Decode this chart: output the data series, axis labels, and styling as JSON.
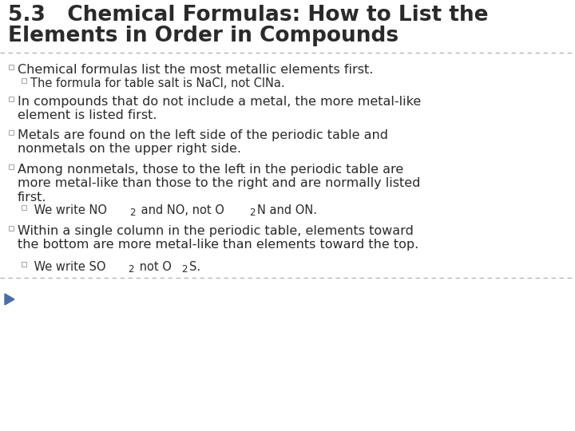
{
  "title_line1": "5.3   Chemical Formulas: How to List the",
  "title_line2": "Elements in Order in Compounds",
  "title_fontsize": 19,
  "title_color": "#3a3a3a",
  "bg_color": "#ffffff",
  "text_color": "#2a2a2a",
  "bullet_color": "#888888",
  "dashed_line_color": "#aaaaaa",
  "body_fontsize": 11.5,
  "sub_fontsize": 10.5,
  "subscript_fontsize": 8.5,
  "bullet1_main": "Chemical formulas list the most metallic elements first.",
  "bullet1_sub": "The formula for table salt is NaCl, not ClNa.",
  "bullet2_main": "In compounds that do not include a metal, the more metal-like\nelement is listed first.",
  "bullet3_main": "Metals are found on the left side of the periodic table and\nnonmetals on the upper right side.",
  "bullet4_main": "Among nonmetals, those to the left in the periodic table are\nmore metal-like than those to the right and are normally listed\nfirst.",
  "bullet5_main": "Within a single column in the periodic table, elements toward\nthe bottom are more metal-like than elements toward the top.",
  "arrow_color": "#4a6fa5"
}
